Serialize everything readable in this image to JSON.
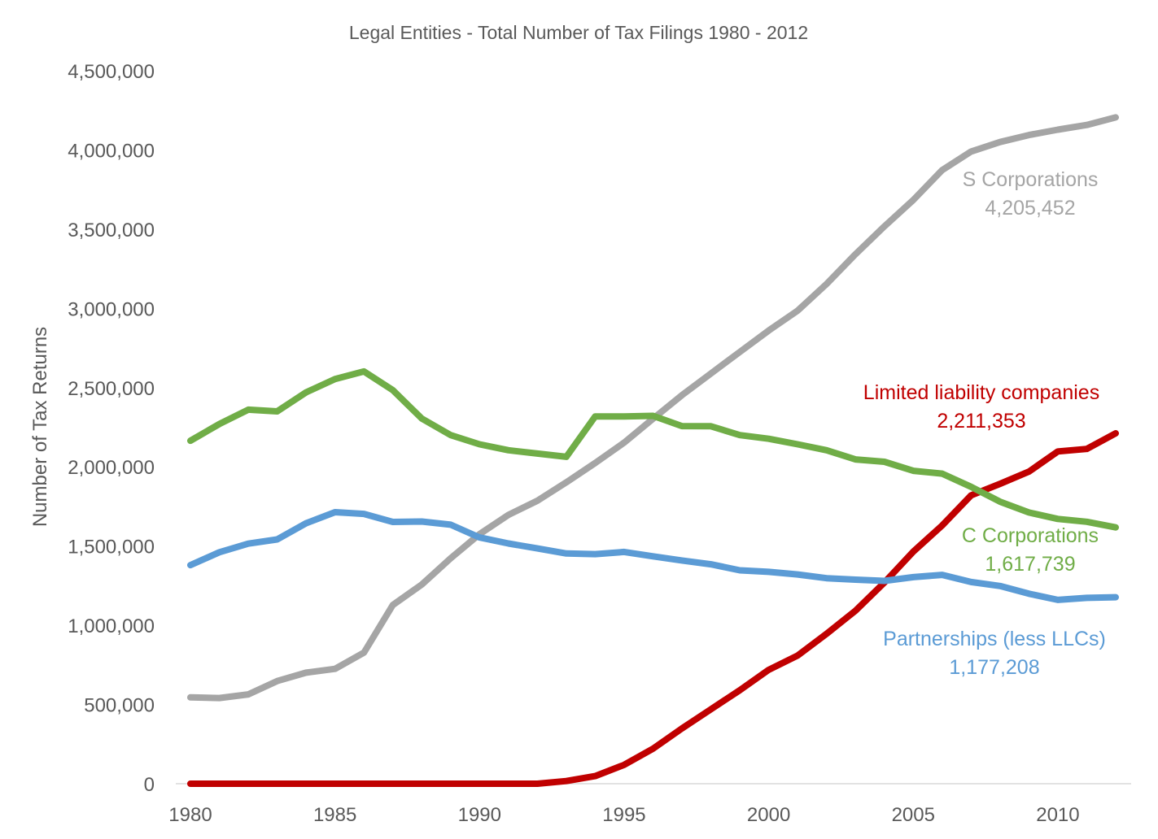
{
  "chart_data": {
    "type": "line",
    "title": "Legal Entities - Total Number of Tax Filings 1980 - 2012",
    "xlabel": "",
    "ylabel": "Number of Tax Returns",
    "xlim": [
      1980,
      2012
    ],
    "ylim": [
      0,
      4500000
    ],
    "x_ticks": [
      1980,
      1985,
      1990,
      1995,
      2000,
      2005,
      2010
    ],
    "x_tick_labels": [
      "1980",
      "1985",
      "1990",
      "1995",
      "2000",
      "2005",
      "2010"
    ],
    "y_ticks": [
      0,
      500000,
      1000000,
      1500000,
      2000000,
      2500000,
      3000000,
      3500000,
      4000000,
      4500000
    ],
    "y_tick_labels": [
      "0",
      "500,000",
      "1,000,000",
      "1,500,000",
      "2,000,000",
      "2,500,000",
      "3,000,000",
      "3,500,000",
      "4,000,000",
      "4,500,000"
    ],
    "grid": false,
    "legend": "none",
    "x": [
      1980,
      1981,
      1982,
      1983,
      1984,
      1985,
      1986,
      1987,
      1988,
      1989,
      1990,
      1991,
      1992,
      1993,
      1994,
      1995,
      1996,
      1997,
      1998,
      1999,
      2000,
      2001,
      2002,
      2003,
      2004,
      2005,
      2006,
      2007,
      2008,
      2009,
      2010,
      2011,
      2012
    ],
    "series": [
      {
        "name": "S Corporations",
        "color": "#A5A5A5",
        "label_lines": [
          "S Corporations",
          "4,205,452"
        ],
        "values": [
          545000,
          541000,
          564000,
          648000,
          701000,
          725000,
          827000,
          1128000,
          1257000,
          1423000,
          1575000,
          1697000,
          1786000,
          1902000,
          2024000,
          2153000,
          2304000,
          2452000,
          2589000,
          2725000,
          2860000,
          2986000,
          3154000,
          3342000,
          3518000,
          3684000,
          3873000,
          3990000,
          4050000,
          4094000,
          4128000,
          4158000,
          4205452
        ]
      },
      {
        "name": "Limited liability companies",
        "color": "#C00000",
        "label_lines": [
          "Limited liability companies",
          "2,211,353"
        ],
        "values": [
          0,
          0,
          0,
          0,
          0,
          0,
          0,
          0,
          0,
          0,
          0,
          0,
          0,
          17000,
          48000,
          119000,
          221000,
          349000,
          470000,
          590000,
          719000,
          809000,
          946000,
          1092000,
          1270000,
          1465000,
          1630000,
          1820000,
          1893000,
          1970000,
          2097000,
          2113000,
          2211353
        ]
      },
      {
        "name": "C Corporations",
        "color": "#70AD47",
        "label_lines": [
          "C Corporations",
          "1,617,739"
        ],
        "values": [
          2165000,
          2270000,
          2361000,
          2350000,
          2470000,
          2554000,
          2602000,
          2484000,
          2305000,
          2200000,
          2142000,
          2105000,
          2084000,
          2063000,
          2318000,
          2318000,
          2322000,
          2257000,
          2256000,
          2200000,
          2177000,
          2142000,
          2105000,
          2047000,
          2032000,
          1975000,
          1957000,
          1874000,
          1780000,
          1712000,
          1671000,
          1653000,
          1617739
        ]
      },
      {
        "name": "Partnerships (less LLCs)",
        "color": "#5B9BD5",
        "label_lines": [
          "Partnerships (less LLCs)",
          "1,177,208"
        ],
        "values": [
          1380000,
          1461000,
          1515000,
          1542000,
          1644000,
          1714000,
          1703000,
          1652000,
          1655000,
          1635000,
          1554000,
          1516000,
          1485000,
          1453000,
          1449000,
          1463000,
          1435000,
          1409000,
          1385000,
          1347000,
          1337000,
          1321000,
          1297000,
          1288000,
          1280000,
          1304000,
          1318000,
          1273000,
          1248000,
          1199000,
          1160000,
          1173000,
          1177208
        ]
      }
    ]
  }
}
